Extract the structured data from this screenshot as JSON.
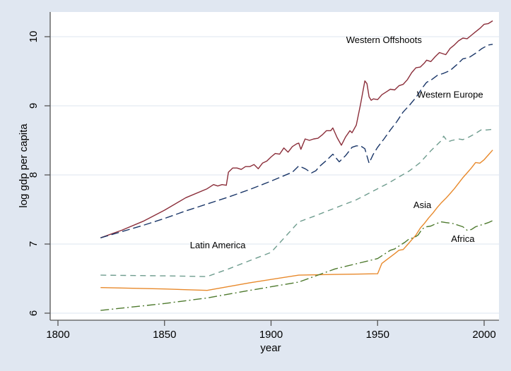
{
  "chart_data": {
    "type": "line",
    "title": "",
    "xlabel": "year",
    "ylabel": "log gdp per capita",
    "xlim": [
      1800,
      2008
    ],
    "ylim": [
      5.9,
      10.35
    ],
    "xticks": [
      1800,
      1850,
      1900,
      1950,
      2000
    ],
    "yticks": [
      6,
      7,
      8,
      9,
      10
    ],
    "grid": true,
    "legend": "none (inline series labels)",
    "series": [
      {
        "name": "Western Offshoots",
        "label": "Western Offshoots",
        "color": "#8b2e3a",
        "dash": "solid",
        "points": [
          [
            1820,
            7.09
          ],
          [
            1830,
            7.2
          ],
          [
            1840,
            7.33
          ],
          [
            1850,
            7.49
          ],
          [
            1860,
            7.67
          ],
          [
            1870,
            7.8
          ],
          [
            1873,
            7.86
          ],
          [
            1875,
            7.84
          ],
          [
            1877,
            7.86
          ],
          [
            1879,
            7.85
          ],
          [
            1880,
            8.04
          ],
          [
            1882,
            8.1
          ],
          [
            1884,
            8.1
          ],
          [
            1886,
            8.08
          ],
          [
            1888,
            8.12
          ],
          [
            1890,
            8.12
          ],
          [
            1892,
            8.15
          ],
          [
            1894,
            8.09
          ],
          [
            1896,
            8.17
          ],
          [
            1898,
            8.2
          ],
          [
            1900,
            8.26
          ],
          [
            1902,
            8.31
          ],
          [
            1904,
            8.3
          ],
          [
            1906,
            8.39
          ],
          [
            1908,
            8.33
          ],
          [
            1910,
            8.41
          ],
          [
            1912,
            8.45
          ],
          [
            1913,
            8.46
          ],
          [
            1914,
            8.37
          ],
          [
            1916,
            8.52
          ],
          [
            1918,
            8.5
          ],
          [
            1920,
            8.52
          ],
          [
            1922,
            8.53
          ],
          [
            1924,
            8.58
          ],
          [
            1926,
            8.64
          ],
          [
            1928,
            8.64
          ],
          [
            1929,
            8.68
          ],
          [
            1931,
            8.54
          ],
          [
            1933,
            8.43
          ],
          [
            1935,
            8.55
          ],
          [
            1937,
            8.64
          ],
          [
            1938,
            8.61
          ],
          [
            1940,
            8.72
          ],
          [
            1942,
            9.02
          ],
          [
            1944,
            9.36
          ],
          [
            1945,
            9.32
          ],
          [
            1946,
            9.13
          ],
          [
            1947,
            9.08
          ],
          [
            1948,
            9.1
          ],
          [
            1950,
            9.09
          ],
          [
            1952,
            9.16
          ],
          [
            1954,
            9.2
          ],
          [
            1956,
            9.24
          ],
          [
            1958,
            9.23
          ],
          [
            1960,
            9.29
          ],
          [
            1962,
            9.31
          ],
          [
            1964,
            9.38
          ],
          [
            1966,
            9.48
          ],
          [
            1968,
            9.55
          ],
          [
            1970,
            9.56
          ],
          [
            1972,
            9.62
          ],
          [
            1973,
            9.66
          ],
          [
            1975,
            9.64
          ],
          [
            1977,
            9.71
          ],
          [
            1979,
            9.77
          ],
          [
            1980,
            9.76
          ],
          [
            1982,
            9.74
          ],
          [
            1984,
            9.83
          ],
          [
            1986,
            9.88
          ],
          [
            1988,
            9.94
          ],
          [
            1990,
            9.98
          ],
          [
            1992,
            9.97
          ],
          [
            1994,
            10.02
          ],
          [
            1996,
            10.07
          ],
          [
            1998,
            10.12
          ],
          [
            2000,
            10.18
          ],
          [
            2002,
            10.19
          ],
          [
            2004,
            10.23
          ]
        ]
      },
      {
        "name": "Western Europe",
        "label": "Western Europe",
        "color": "#1a3668",
        "dash": "longdash",
        "points": [
          [
            1820,
            7.09
          ],
          [
            1830,
            7.18
          ],
          [
            1840,
            7.27
          ],
          [
            1850,
            7.37
          ],
          [
            1860,
            7.48
          ],
          [
            1870,
            7.58
          ],
          [
            1880,
            7.68
          ],
          [
            1890,
            7.79
          ],
          [
            1900,
            7.91
          ],
          [
            1910,
            8.04
          ],
          [
            1913,
            8.13
          ],
          [
            1916,
            8.09
          ],
          [
            1919,
            8.03
          ],
          [
            1921,
            8.06
          ],
          [
            1923,
            8.13
          ],
          [
            1926,
            8.21
          ],
          [
            1929,
            8.3
          ],
          [
            1932,
            8.19
          ],
          [
            1935,
            8.28
          ],
          [
            1938,
            8.4
          ],
          [
            1940,
            8.42
          ],
          [
            1942,
            8.42
          ],
          [
            1944,
            8.38
          ],
          [
            1946,
            8.17
          ],
          [
            1948,
            8.3
          ],
          [
            1950,
            8.4
          ],
          [
            1953,
            8.52
          ],
          [
            1956,
            8.65
          ],
          [
            1959,
            8.77
          ],
          [
            1962,
            8.91
          ],
          [
            1965,
            9.01
          ],
          [
            1968,
            9.12
          ],
          [
            1971,
            9.26
          ],
          [
            1973,
            9.34
          ],
          [
            1975,
            9.37
          ],
          [
            1978,
            9.44
          ],
          [
            1981,
            9.47
          ],
          [
            1984,
            9.51
          ],
          [
            1987,
            9.59
          ],
          [
            1990,
            9.68
          ],
          [
            1993,
            9.7
          ],
          [
            1996,
            9.76
          ],
          [
            1999,
            9.83
          ],
          [
            2002,
            9.88
          ],
          [
            2004,
            9.89
          ]
        ]
      },
      {
        "name": "Latin America",
        "label": "Latin America",
        "color": "#6e9c8e",
        "dash": "dash",
        "points": [
          [
            1820,
            6.55
          ],
          [
            1850,
            6.54
          ],
          [
            1870,
            6.53
          ],
          [
            1880,
            6.64
          ],
          [
            1890,
            6.76
          ],
          [
            1900,
            6.88
          ],
          [
            1913,
            7.32
          ],
          [
            1920,
            7.4
          ],
          [
            1930,
            7.52
          ],
          [
            1940,
            7.64
          ],
          [
            1950,
            7.8
          ],
          [
            1955,
            7.88
          ],
          [
            1960,
            7.97
          ],
          [
            1965,
            8.06
          ],
          [
            1970,
            8.18
          ],
          [
            1975,
            8.35
          ],
          [
            1980,
            8.5
          ],
          [
            1981,
            8.56
          ],
          [
            1983,
            8.48
          ],
          [
            1985,
            8.5
          ],
          [
            1988,
            8.52
          ],
          [
            1990,
            8.51
          ],
          [
            1993,
            8.55
          ],
          [
            1996,
            8.6
          ],
          [
            1999,
            8.66
          ],
          [
            2001,
            8.65
          ],
          [
            2004,
            8.66
          ]
        ]
      },
      {
        "name": "Asia",
        "label": "Asia",
        "color": "#e8892b",
        "dash": "solid",
        "points": [
          [
            1820,
            6.37
          ],
          [
            1850,
            6.35
          ],
          [
            1870,
            6.33
          ],
          [
            1890,
            6.44
          ],
          [
            1913,
            6.55
          ],
          [
            1930,
            6.56
          ],
          [
            1950,
            6.57
          ],
          [
            1952,
            6.72
          ],
          [
            1955,
            6.79
          ],
          [
            1958,
            6.86
          ],
          [
            1960,
            6.91
          ],
          [
            1962,
            6.92
          ],
          [
            1964,
            6.99
          ],
          [
            1966,
            7.06
          ],
          [
            1968,
            7.13
          ],
          [
            1970,
            7.23
          ],
          [
            1972,
            7.3
          ],
          [
            1974,
            7.38
          ],
          [
            1976,
            7.45
          ],
          [
            1978,
            7.53
          ],
          [
            1980,
            7.6
          ],
          [
            1982,
            7.66
          ],
          [
            1984,
            7.73
          ],
          [
            1986,
            7.8
          ],
          [
            1988,
            7.88
          ],
          [
            1990,
            7.96
          ],
          [
            1992,
            8.03
          ],
          [
            1994,
            8.1
          ],
          [
            1996,
            8.18
          ],
          [
            1998,
            8.17
          ],
          [
            2000,
            8.22
          ],
          [
            2002,
            8.29
          ],
          [
            2004,
            8.36
          ]
        ]
      },
      {
        "name": "Africa",
        "label": "Africa",
        "color": "#4e7a2e",
        "dash": "dashdot",
        "points": [
          [
            1820,
            6.04
          ],
          [
            1850,
            6.14
          ],
          [
            1870,
            6.22
          ],
          [
            1890,
            6.33
          ],
          [
            1913,
            6.45
          ],
          [
            1930,
            6.64
          ],
          [
            1950,
            6.79
          ],
          [
            1953,
            6.85
          ],
          [
            1956,
            6.91
          ],
          [
            1958,
            6.93
          ],
          [
            1960,
            6.97
          ],
          [
            1963,
            7.03
          ],
          [
            1965,
            7.08
          ],
          [
            1967,
            7.09
          ],
          [
            1969,
            7.13
          ],
          [
            1971,
            7.22
          ],
          [
            1973,
            7.25
          ],
          [
            1975,
            7.26
          ],
          [
            1977,
            7.29
          ],
          [
            1980,
            7.32
          ],
          [
            1982,
            7.31
          ],
          [
            1985,
            7.3
          ],
          [
            1988,
            7.27
          ],
          [
            1990,
            7.25
          ],
          [
            1992,
            7.2
          ],
          [
            1994,
            7.21
          ],
          [
            1996,
            7.25
          ],
          [
            1998,
            7.27
          ],
          [
            2000,
            7.29
          ],
          [
            2002,
            7.31
          ],
          [
            2004,
            7.34
          ]
        ]
      }
    ],
    "annotations": [
      {
        "text": "Western Offshoots",
        "x": 1953,
        "y": 9.96
      },
      {
        "text": "Western Europe",
        "x": 1984,
        "y": 9.17
      },
      {
        "text": "Latin America",
        "x": 1875,
        "y": 6.99
      },
      {
        "text": "Asia",
        "x": 1971,
        "y": 7.57
      },
      {
        "text": "Africa",
        "x": 1990,
        "y": 7.08
      }
    ]
  }
}
